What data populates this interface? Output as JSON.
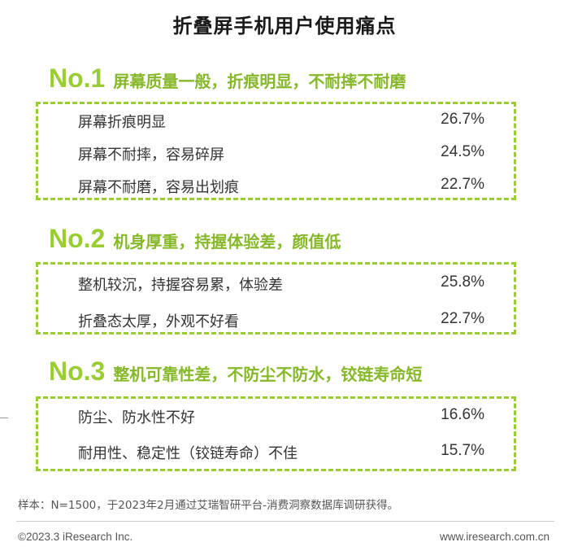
{
  "title": "折叠屏手机用户使用痛点",
  "sections": [
    {
      "rank": "No.1",
      "headline": "屏幕质量一般，折痕明显，不耐摔不耐磨",
      "items": [
        {
          "label": "屏幕折痕明显",
          "value": "26.7%"
        },
        {
          "label": "屏幕不耐摔，容易碎屏",
          "value": "24.5%"
        },
        {
          "label": "屏幕不耐磨，容易出划痕",
          "value": "22.7%"
        }
      ]
    },
    {
      "rank": "No.2",
      "headline": "机身厚重，持握体验差，颜值低",
      "items": [
        {
          "label": "整机较沉，持握容易累，体验差",
          "value": "25.8%"
        },
        {
          "label": "折叠态太厚，外观不好看",
          "value": "22.7%"
        }
      ]
    },
    {
      "rank": "No.3",
      "headline": "整机可靠性差，不防尘不防水，铰链寿命短",
      "items": [
        {
          "label": "防尘、防水性不好",
          "value": "16.6%"
        },
        {
          "label": "耐用性、稳定性（铰链寿命）不佳",
          "value": "15.7%"
        }
      ]
    }
  ],
  "footnote": "样本：N=1500，于2023年2月通过艾瑞智研平台-消费洞察数据库调研获得。",
  "copyright": "©2023.3 iResearch Inc.",
  "website": "www.iresearch.com.cn",
  "colors": {
    "accent": "#9acd32",
    "heading_text": "#86b82a"
  },
  "chart_data": {
    "type": "table",
    "title": "折叠屏手机用户使用痛点",
    "categories": [
      "屏幕折痕明显",
      "屏幕不耐摔，容易碎屏",
      "屏幕不耐磨，容易出划痕",
      "整机较沉，持握容易累，体验差",
      "折叠态太厚，外观不好看",
      "防尘、防水性不好",
      "耐用性、稳定性（铰链寿命）不佳"
    ],
    "values": [
      26.7,
      24.5,
      22.7,
      25.8,
      22.7,
      16.6,
      15.7
    ],
    "unit": "%"
  }
}
